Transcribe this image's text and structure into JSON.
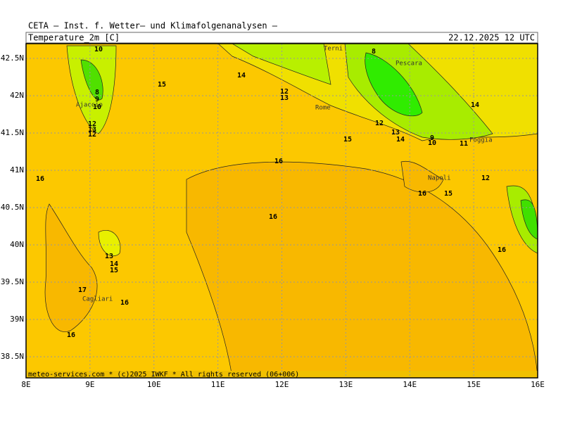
{
  "header": {
    "source": "CETA – Inst. f. Wetter– und Klimafolgenanalysen –",
    "field": "Temperature_2m [C]",
    "time": "22.12.2025 12 UTC"
  },
  "footer": "meteo-services.com * (c)2025 IWKF * All rights reserved (06+006)",
  "lat_labels": [
    "42.5N",
    "42N",
    "41.5N",
    "41N",
    "40.5N",
    "40N",
    "39.5N",
    "39N",
    "38.5N"
  ],
  "lon_labels": [
    "8E",
    "9E",
    "10E",
    "11E",
    "12E",
    "13E",
    "14E",
    "15E",
    "16E"
  ],
  "cities": [
    "Terni",
    "Pescara",
    "Ajaccio",
    "Rome",
    "Foggia",
    "Napoli",
    "Cagliari"
  ],
  "contour_labels": [
    10,
    8,
    14,
    15,
    8,
    9,
    10,
    12,
    13,
    14,
    12,
    13,
    12,
    12,
    13,
    14,
    15,
    9,
    10,
    11,
    16,
    16,
    12,
    16,
    15,
    16,
    13,
    14,
    15,
    16,
    17,
    16,
    16
  ]
}
